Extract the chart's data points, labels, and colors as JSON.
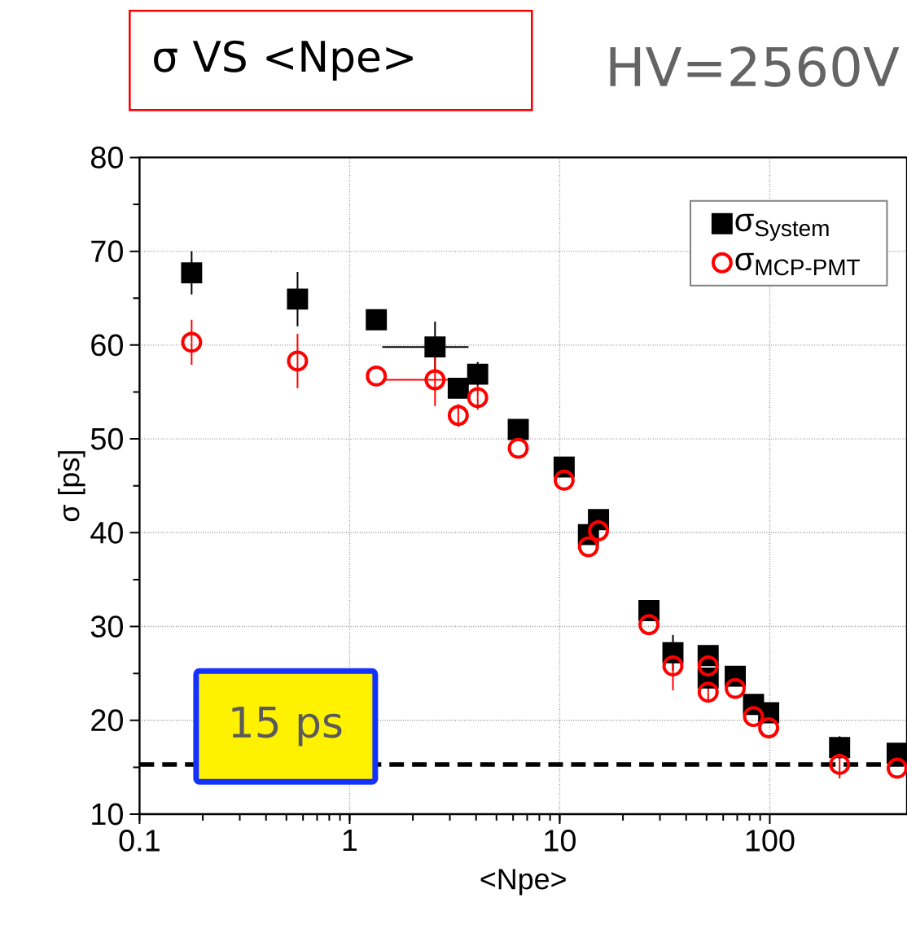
{
  "chart_data": {
    "type": "scatter",
    "title": "σ VS <Npe>",
    "subtitle": "HV=2560V",
    "xlabel": "<Npe>",
    "ylabel": "σ [ps]",
    "log": "x",
    "grid": true,
    "legend": "top right",
    "xlim": [
      0.1,
      450
    ],
    "xticks": [
      0.1,
      1,
      10,
      100
    ],
    "ylim": [
      10,
      80
    ],
    "yticks": [
      10,
      20,
      30,
      40,
      50,
      60,
      70,
      80
    ],
    "x": [
      0.177,
      0.565,
      1.34,
      2.55,
      3.29,
      4.07,
      6.35,
      10.5,
      13.7,
      15.3,
      26.6,
      34.6,
      50.9,
      50.9,
      68.5,
      83.7,
      98.8,
      215,
      404
    ],
    "series": [
      {
        "name": "σ$_{System}$",
        "color": "#000000",
        "marker": "square",
        "values": [
          67.7,
          64.9,
          62.7,
          59.8,
          55.4,
          56.9,
          51.0,
          47.0,
          39.8,
          41.4,
          31.7,
          27.2,
          26.9,
          24.5,
          24.7,
          21.7,
          20.8,
          17.1,
          16.5
        ],
        "errors": [
          2.3,
          2.9,
          null,
          2.7,
          1.0,
          1.3,
          null,
          null,
          null,
          null,
          null,
          1.9,
          null,
          null,
          null,
          null,
          null,
          1.2,
          null
        ],
        "xerrors": [
          null,
          null,
          null,
          [
            1.43,
            3.68
          ],
          null,
          null,
          null,
          null,
          null,
          null,
          null,
          null,
          null,
          null,
          null,
          null,
          null,
          null,
          null
        ]
      },
      {
        "name": "σ$_{MCP-PMT}$",
        "color": "#ff0000",
        "marker": "circle",
        "values": [
          60.3,
          58.3,
          56.7,
          56.3,
          52.5,
          54.4,
          49.0,
          45.6,
          38.5,
          40.2,
          30.2,
          25.8,
          25.8,
          23.0,
          23.4,
          20.4,
          19.2,
          15.3,
          14.9
        ],
        "errors": [
          2.4,
          2.9,
          null,
          2.8,
          1.2,
          1.3,
          null,
          null,
          null,
          null,
          null,
          2.6,
          null,
          1.0,
          null,
          null,
          null,
          1.5,
          null
        ],
        "xerrors": [
          null,
          null,
          null,
          [
            1.47,
            3.27
          ],
          null,
          null,
          null,
          null,
          null,
          null,
          null,
          null,
          null,
          null,
          null,
          null,
          null,
          null,
          null
        ]
      }
    ],
    "ref_lines": [
      {
        "axis": "y",
        "value": 15.3,
        "label": "15 ps",
        "color": "#000000",
        "line_style": "dashed"
      }
    ]
  }
}
